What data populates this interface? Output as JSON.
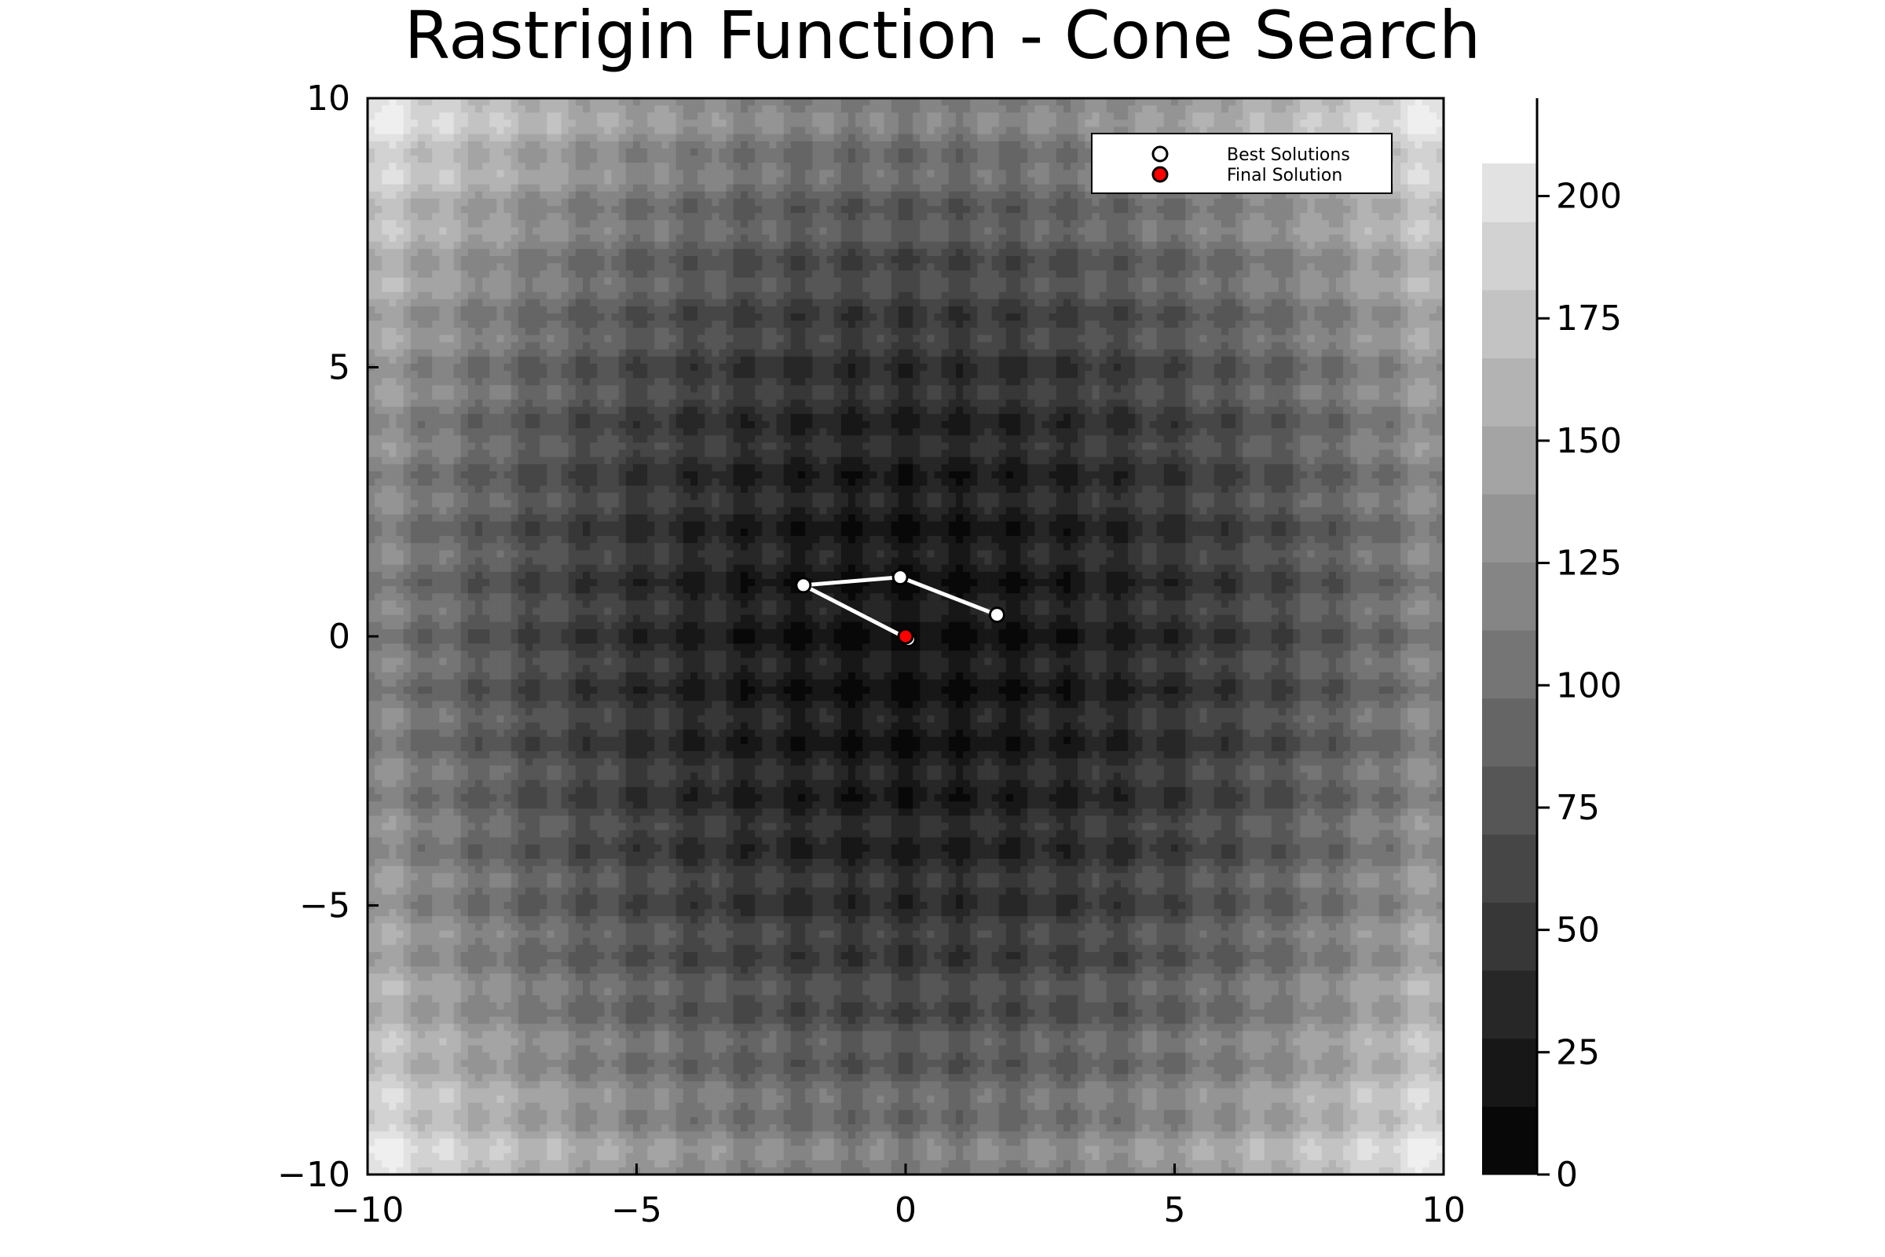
{
  "chart_data": {
    "type": "heatmap",
    "title": "Rastrigin Function - Cone Search",
    "xlabel": "",
    "ylabel": "",
    "xlim": [
      -10,
      10
    ],
    "ylim": [
      -10,
      10
    ],
    "x_ticks": [
      -10,
      -5,
      0,
      5,
      10
    ],
    "y_ticks": [
      -10,
      -5,
      0,
      5,
      10
    ],
    "tick_labels": {
      "x": [
        "−10",
        "−5",
        "0",
        "5",
        "10"
      ],
      "y": [
        "−10",
        "−5",
        "0",
        "5",
        "10"
      ]
    },
    "colorbar": {
      "range": [
        0,
        220
      ],
      "ticks": [
        0,
        25,
        50,
        75,
        100,
        125,
        150,
        175,
        200
      ],
      "tick_labels": [
        "0",
        "25",
        "50",
        "75",
        "100",
        "125",
        "150",
        "175",
        "200"
      ],
      "levels": [
        0,
        14,
        28,
        42,
        56,
        70,
        84,
        98,
        112,
        126,
        140,
        154,
        168,
        182,
        196,
        208
      ],
      "colormap": "grayscale",
      "low_color": "#000000",
      "high_color": "#ffffff"
    },
    "surface": "10*2 + x^2 - 10*cos(2*pi*x) + y^2 - 10*cos(2*pi*y)",
    "grid": false,
    "legend": {
      "position": "top-right",
      "entries": [
        "Best Solutions",
        "Final Solution"
      ]
    },
    "series": [
      {
        "name": "Best Solutions",
        "type": "line+scatter",
        "color": "#ffffff",
        "x": [
          1.7,
          -0.1,
          -1.9,
          0.05
        ],
        "y": [
          0.4,
          1.1,
          0.95,
          -0.05
        ]
      },
      {
        "name": "Final Solution",
        "type": "scatter",
        "color": "#ff0000",
        "x": [
          0.0
        ],
        "y": [
          0.0
        ]
      }
    ]
  }
}
